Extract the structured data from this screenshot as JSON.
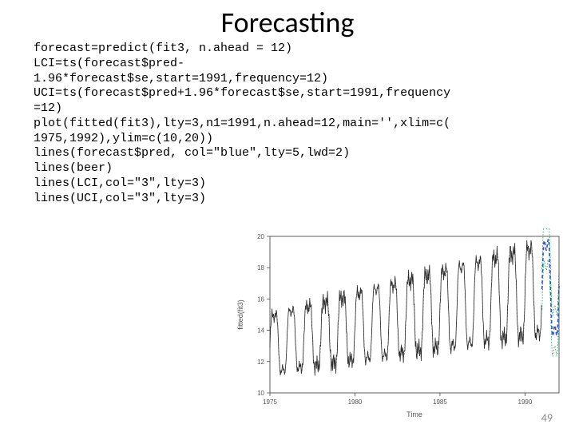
{
  "title": "Forecasting",
  "code": "forecast=predict(fit3, n.ahead = 12)\nLCI=ts(forecast$pred-\n1.96*forecast$se,start=1991,frequency=12)\nUCI=ts(forecast$pred+1.96*forecast$se,start=1991,frequency\n=12)\nplot(fitted(fit3),lty=3,n1=1991,n.ahead=12,main='',xlim=c(\n1975,1992),ylim=c(10,20))\nlines(forecast$pred, col=\"blue\",lty=5,lwd=2)\nlines(beer)\nlines(LCI,col=\"3\",lty=3)\nlines(UCI,col=\"3\",lty=3)",
  "page_number": "49",
  "chart": {
    "type": "line",
    "xlim": [
      1975,
      1992
    ],
    "ylim": [
      10,
      20
    ],
    "xticks": [
      1975,
      1980,
      1985,
      1990
    ],
    "yticks": [
      10,
      12,
      14,
      16,
      18,
      20
    ],
    "xlabel": "Time",
    "ylabel": "fitted(fit3)",
    "background_color": "#ffffff",
    "axis_color": "#333333",
    "series": {
      "beer_color": "#2a2a2a",
      "fitted_color": "#6a6a6a",
      "forecast_color": "#3050e0",
      "ci_color": "#00a050"
    },
    "n_cycles": 17,
    "amp_base": 2.4,
    "amp_growth_per_year": 0.085,
    "center_start": 13.1,
    "center_growth_per_year": 0.22,
    "forecast_start": 1991,
    "ci_half_width": 1.3
  }
}
